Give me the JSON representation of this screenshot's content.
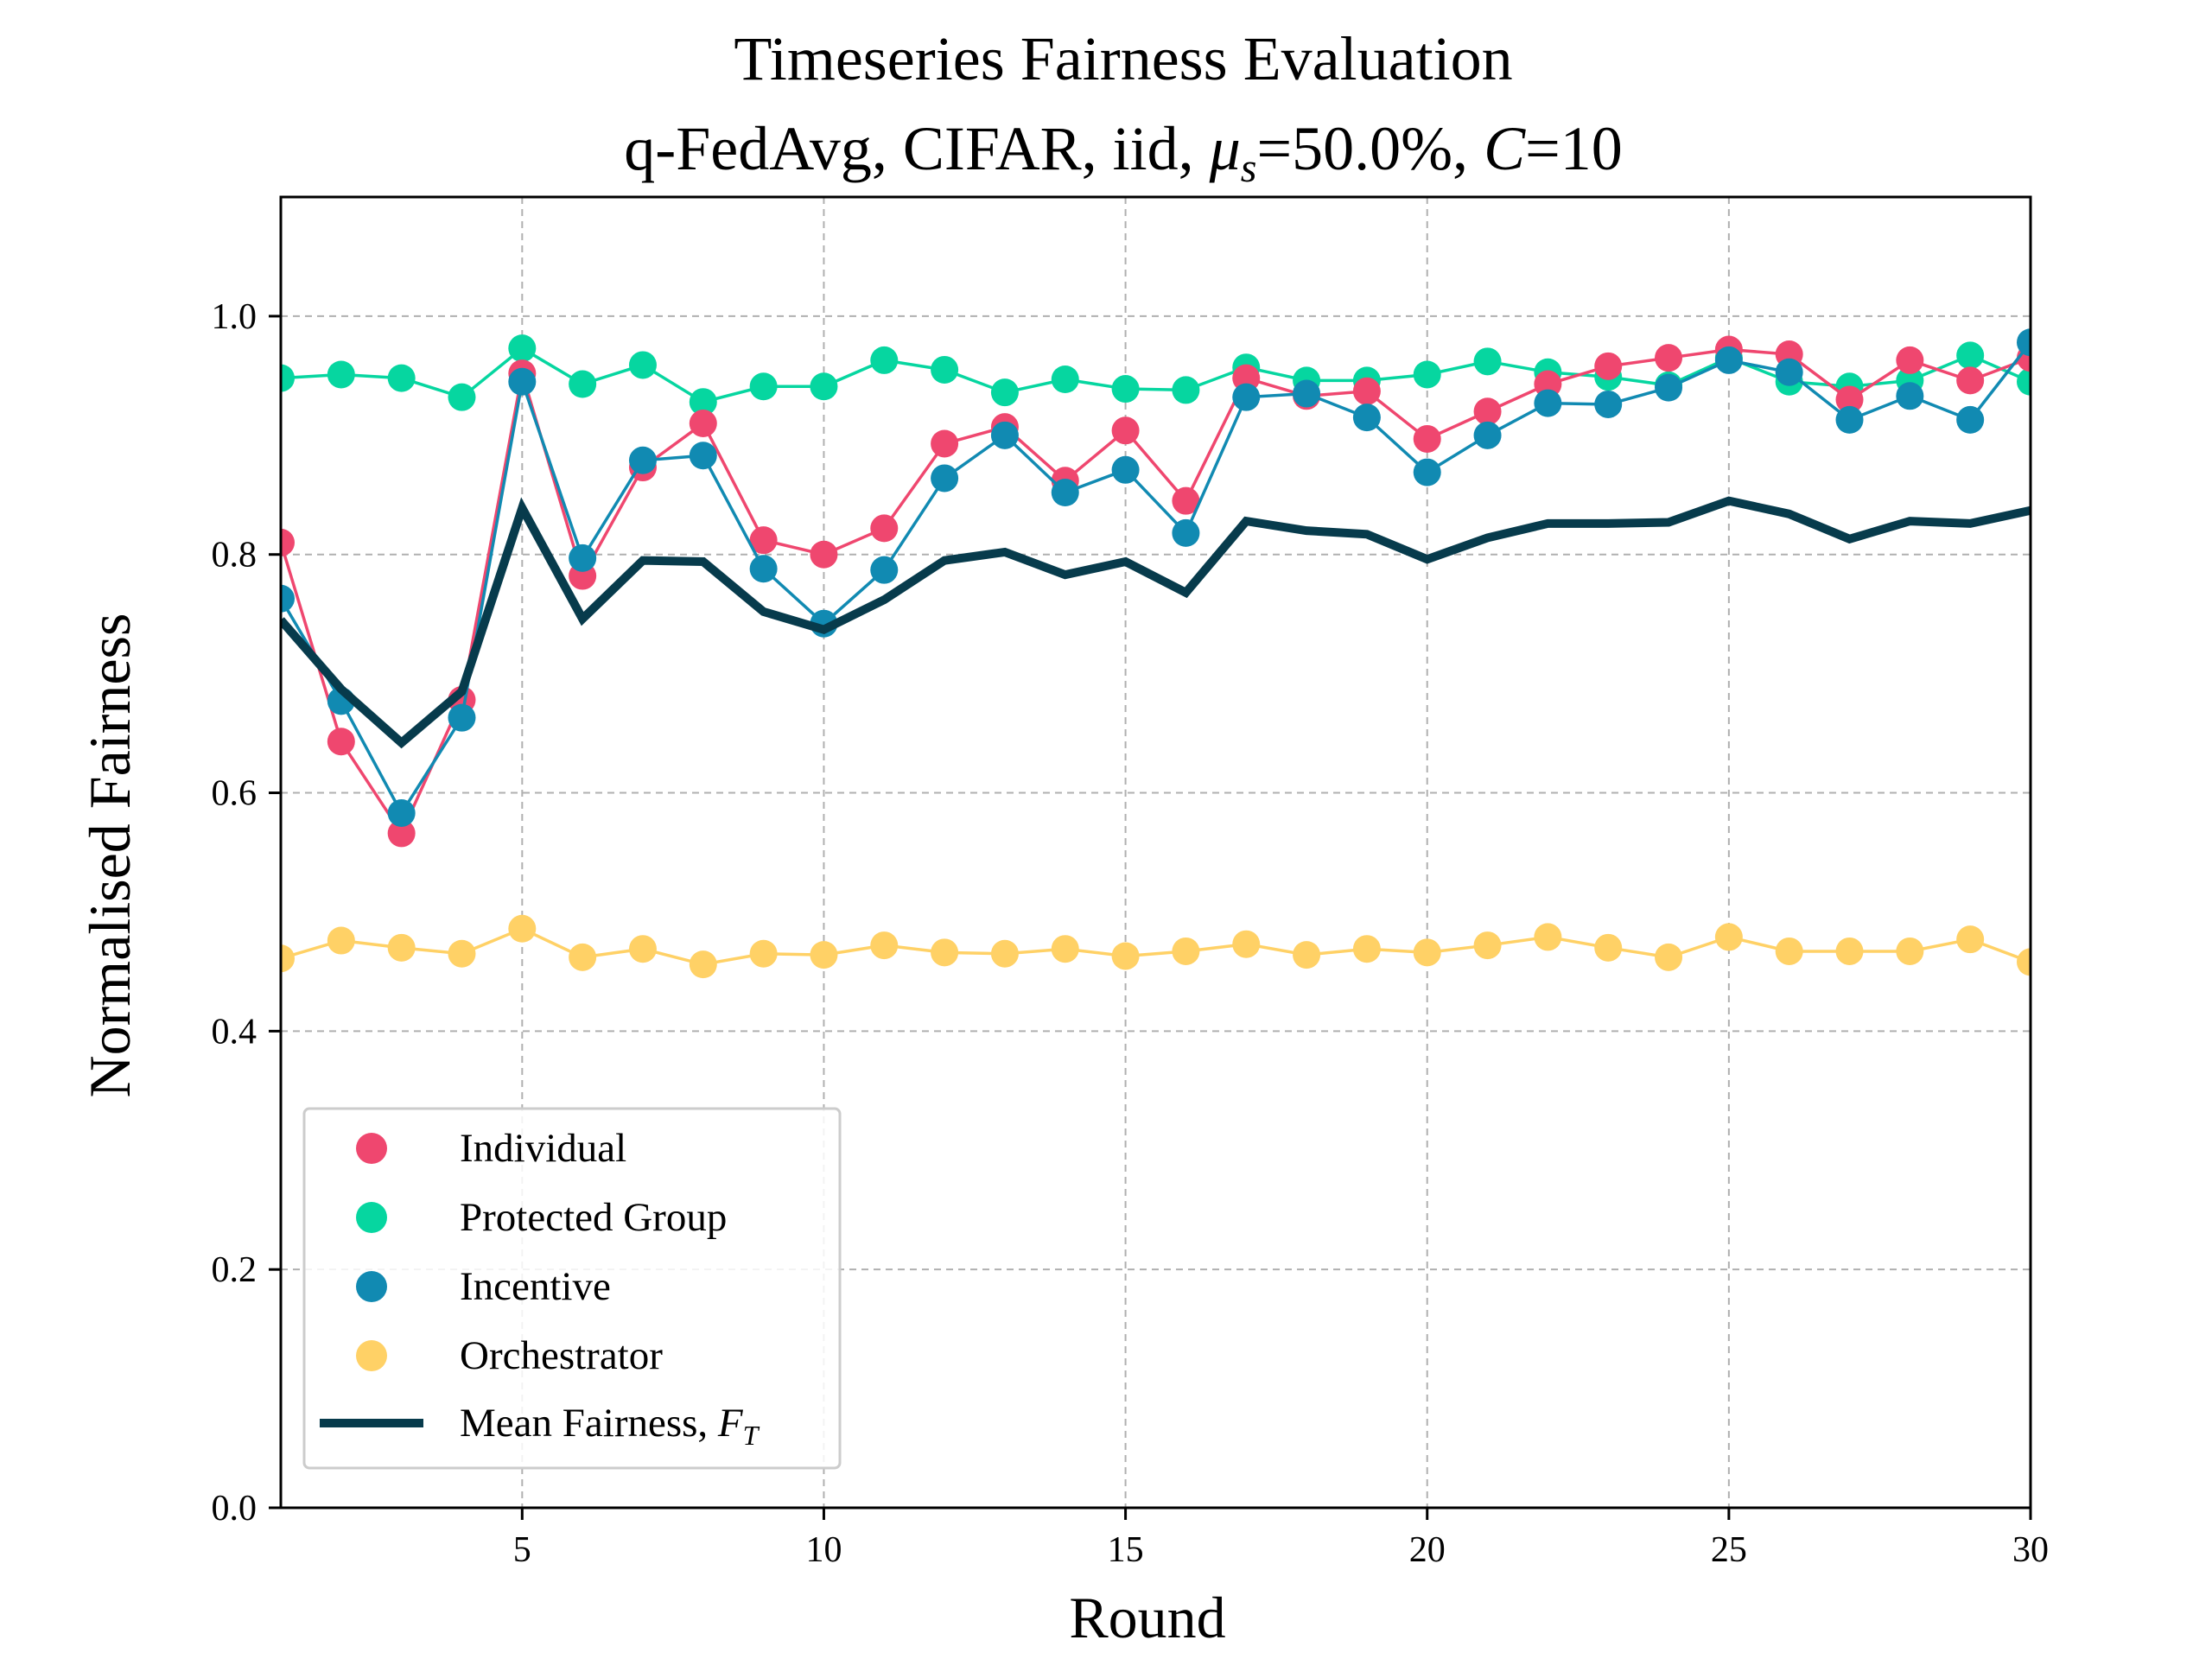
{
  "chart_data": {
    "type": "line",
    "title": "Timeseries Fairness Evaluation",
    "subtitle": "q-FedAvg, CIFAR, iid, μs=50.0%, C=10",
    "subtitle_parts": {
      "prefix": "q-FedAvg, CIFAR, iid, ",
      "mu": "μ",
      "mu_sub": "s",
      "mid": "=50.0%, ",
      "c": "C",
      "suffix": "=10"
    },
    "xlabel": "Round",
    "ylabel": "Normalised Fairness",
    "xlim": [
      1,
      30
    ],
    "ylim": [
      0.0,
      1.1
    ],
    "xticks": [
      5,
      10,
      15,
      20,
      25,
      30
    ],
    "yticks": [
      0.0,
      0.2,
      0.4,
      0.6,
      0.8,
      1.0
    ],
    "ytick_labels": [
      "0.0",
      "0.2",
      "0.4",
      "0.6",
      "0.8",
      "1.0"
    ],
    "grid": true,
    "legend_position": "lower-left",
    "x": [
      1,
      2,
      3,
      4,
      5,
      6,
      7,
      8,
      9,
      10,
      11,
      12,
      13,
      14,
      15,
      16,
      17,
      18,
      19,
      20,
      21,
      22,
      23,
      24,
      25,
      26,
      27,
      28,
      29,
      30
    ],
    "series": [
      {
        "name": "Individual",
        "color": "#ef476f",
        "style": "line-marker",
        "values": [
          0.81,
          0.643,
          0.566,
          0.678,
          0.952,
          0.782,
          0.873,
          0.91,
          0.812,
          0.8,
          0.822,
          0.893,
          0.907,
          0.862,
          0.904,
          0.845,
          0.948,
          0.933,
          0.937,
          0.897,
          0.92,
          0.943,
          0.958,
          0.965,
          0.972,
          0.968,
          0.93,
          0.963,
          0.946,
          0.965
        ]
      },
      {
        "name": "Protected Group",
        "color": "#06d6a0",
        "style": "line-marker",
        "values": [
          0.948,
          0.951,
          0.948,
          0.932,
          0.973,
          0.943,
          0.959,
          0.928,
          0.941,
          0.941,
          0.963,
          0.955,
          0.936,
          0.947,
          0.939,
          0.938,
          0.957,
          0.946,
          0.946,
          0.951,
          0.962,
          0.953,
          0.949,
          0.942,
          0.965,
          0.945,
          0.941,
          0.946,
          0.967,
          0.945
        ]
      },
      {
        "name": "Incentive",
        "color": "#118ab2",
        "style": "line-marker",
        "values": [
          0.763,
          0.677,
          0.583,
          0.663,
          0.945,
          0.797,
          0.879,
          0.883,
          0.788,
          0.742,
          0.787,
          0.864,
          0.9,
          0.852,
          0.871,
          0.818,
          0.932,
          0.935,
          0.915,
          0.869,
          0.9,
          0.927,
          0.926,
          0.94,
          0.963,
          0.953,
          0.913,
          0.933,
          0.913,
          0.978
        ]
      },
      {
        "name": "Orchestrator",
        "color": "#ffd166",
        "style": "line-marker",
        "values": [
          0.461,
          0.476,
          0.47,
          0.465,
          0.486,
          0.462,
          0.469,
          0.456,
          0.465,
          0.464,
          0.472,
          0.466,
          0.465,
          0.469,
          0.463,
          0.467,
          0.473,
          0.464,
          0.469,
          0.466,
          0.472,
          0.479,
          0.47,
          0.462,
          0.479,
          0.467,
          0.467,
          0.467,
          0.477,
          0.458
        ]
      },
      {
        "name": "Mean Fairness, FT",
        "name_parts": {
          "prefix": "Mean Fairness, ",
          "f": "F",
          "f_sub": "T"
        },
        "color": "#073b4c",
        "style": "line",
        "values": [
          0.745,
          0.687,
          0.642,
          0.685,
          0.839,
          0.746,
          0.795,
          0.794,
          0.752,
          0.737,
          0.762,
          0.795,
          0.802,
          0.783,
          0.794,
          0.768,
          0.828,
          0.82,
          0.817,
          0.796,
          0.814,
          0.826,
          0.826,
          0.827,
          0.845,
          0.834,
          0.813,
          0.828,
          0.826,
          0.837
        ]
      }
    ]
  }
}
